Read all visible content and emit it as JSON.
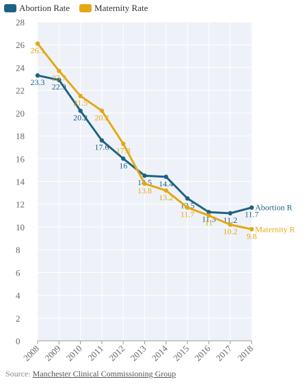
{
  "chart_data": {
    "type": "line",
    "x": [
      "2008",
      "2009",
      "2010",
      "2011",
      "2012",
      "2013",
      "2014",
      "2015",
      "2016",
      "2017",
      "2018"
    ],
    "series": [
      {
        "name": "Abortion Rate",
        "color": "#1f6284",
        "values": [
          23.3,
          22.9,
          20.2,
          17.6,
          16,
          14.5,
          14.4,
          12.5,
          11.3,
          11.2,
          11.7
        ],
        "value_labels": [
          "23.3",
          "22.9",
          "20.2",
          "17.6",
          "16",
          "14.5",
          "14.4",
          "12.5",
          "11.3",
          "11.2",
          "11.7"
        ],
        "end_label": "Abortion R"
      },
      {
        "name": "Maternity Rate",
        "color": "#e5a814",
        "values": [
          26.1,
          23.7,
          21.5,
          20.2,
          17.3,
          13.8,
          13.2,
          11.7,
          11,
          10.2,
          9.8
        ],
        "value_labels": [
          "26.1",
          "23.7",
          "21.5",
          "20.2",
          "17.3",
          "13.8",
          "13.2",
          "11.7",
          "11",
          "10.2",
          "9.8"
        ],
        "end_label": "Maternity R"
      }
    ],
    "ylim": [
      0,
      28
    ],
    "yticks": [
      "0",
      "2",
      "4",
      "6",
      "8",
      "10",
      "12",
      "14",
      "16",
      "18",
      "20",
      "22",
      "24",
      "26",
      "28"
    ],
    "grid": true,
    "legend_position": "top-left"
  },
  "legend": {
    "abortion_label": "Abortion Rate",
    "maternity_label": "Maternity Rate",
    "abortion_color": "#1f6284",
    "maternity_color": "#e5a814"
  },
  "source": {
    "prefix": "Source: ",
    "link_text": "Manchester Clinical Commissioning Group"
  }
}
